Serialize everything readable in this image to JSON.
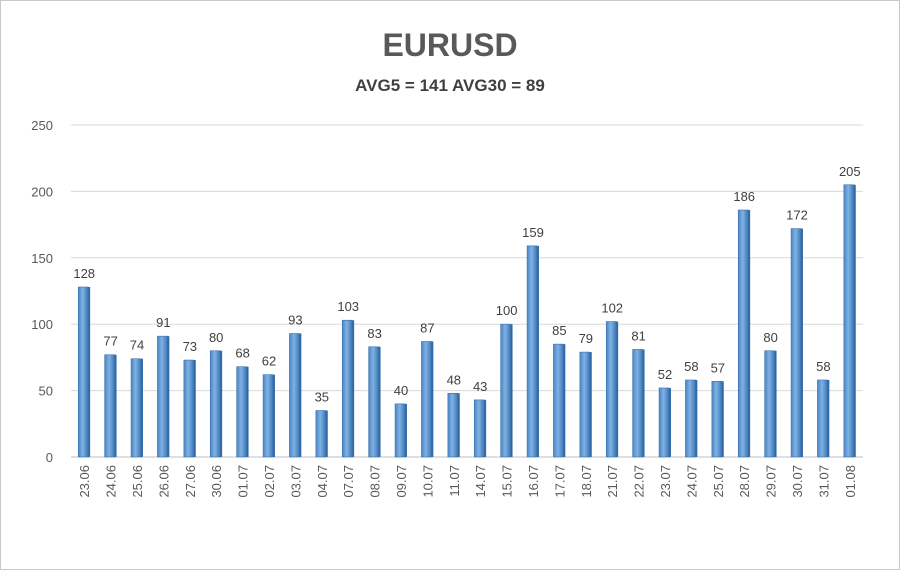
{
  "chart_data": {
    "type": "bar",
    "title": "EURUSD",
    "subtitle": "AVG5 = 141 AVG30 = 89",
    "xlabel": "",
    "ylabel": "",
    "ylim": [
      0,
      250
    ],
    "yticks": [
      0,
      50,
      100,
      150,
      200,
      250
    ],
    "grid": true,
    "legend": "none",
    "bar_color": "#5b9bd5",
    "categories": [
      "23.06",
      "24.06",
      "25.06",
      "26.06",
      "27.06",
      "30.06",
      "01.07",
      "02.07",
      "03.07",
      "04.07",
      "07.07",
      "08.07",
      "09.07",
      "10.07",
      "11.07",
      "14.07",
      "15.07",
      "16.07",
      "17.07",
      "18.07",
      "21.07",
      "22.07",
      "23.07",
      "24.07",
      "25.07",
      "28.07",
      "29.07",
      "30.07",
      "31.07",
      "01.08"
    ],
    "values": [
      128,
      77,
      74,
      91,
      73,
      80,
      68,
      62,
      93,
      35,
      103,
      83,
      40,
      87,
      48,
      43,
      100,
      159,
      85,
      79,
      102,
      81,
      52,
      58,
      57,
      186,
      80,
      172,
      58,
      205
    ]
  }
}
